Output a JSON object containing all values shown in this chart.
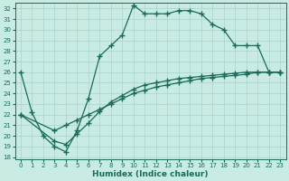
{
  "xlabel": "Humidex (Indice chaleur)",
  "xlim": [
    -0.5,
    23.5
  ],
  "ylim": [
    17.8,
    32.5
  ],
  "xticks": [
    0,
    1,
    2,
    3,
    4,
    5,
    6,
    7,
    8,
    9,
    10,
    11,
    12,
    13,
    14,
    15,
    16,
    17,
    18,
    19,
    20,
    21,
    22,
    23
  ],
  "yticks": [
    18,
    19,
    20,
    21,
    22,
    23,
    24,
    25,
    26,
    27,
    28,
    29,
    30,
    31,
    32
  ],
  "bg_color": "#c8ebe3",
  "line_color": "#1a6b5a",
  "grid_color": "#aad4cc",
  "curve1_x": [
    0,
    1,
    2,
    3,
    4,
    5,
    6,
    7,
    8,
    9,
    10,
    11,
    12,
    13,
    14,
    15,
    16,
    17,
    18,
    19,
    20,
    21,
    22,
    23
  ],
  "curve1_y": [
    26,
    22.2,
    20.0,
    19.0,
    18.5,
    20.5,
    23.5,
    27.5,
    28.5,
    29.5,
    32.3,
    31.5,
    31.5,
    31.5,
    31.8,
    31.8,
    31.5,
    30.5,
    30.0,
    28.5,
    28.5,
    28.5,
    26.0,
    26.0
  ],
  "curve2_x": [
    0,
    3,
    4,
    5,
    6,
    7,
    8,
    9,
    10,
    11,
    12,
    13,
    14,
    15,
    16,
    17,
    18,
    19,
    20,
    21,
    22,
    23
  ],
  "curve2_y": [
    22,
    19.5,
    19.2,
    20.2,
    21.2,
    22.3,
    23.2,
    23.8,
    24.4,
    24.8,
    25.0,
    25.2,
    25.4,
    25.5,
    25.6,
    25.7,
    25.8,
    25.9,
    26.0,
    26.0,
    26.0,
    26.0
  ],
  "curve3_x": [
    0,
    3,
    4,
    5,
    6,
    7,
    8,
    9,
    10,
    11,
    12,
    13,
    14,
    15,
    16,
    17,
    18,
    19,
    20,
    21,
    22,
    23
  ],
  "curve3_y": [
    22,
    20.5,
    21.0,
    21.5,
    22.0,
    22.5,
    23.0,
    23.5,
    24.0,
    24.3,
    24.6,
    24.8,
    25.0,
    25.2,
    25.4,
    25.5,
    25.6,
    25.7,
    25.8,
    26.0,
    26.0,
    26.0
  ],
  "marker_style": "+",
  "marker_size": 4,
  "line_width": 0.9,
  "tick_fontsize": 5.0,
  "label_fontsize": 6.5
}
